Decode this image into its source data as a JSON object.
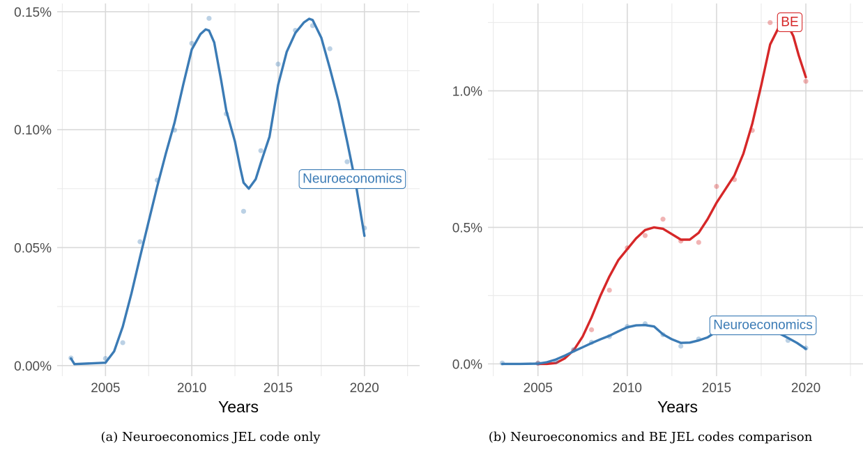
{
  "chart_data": [
    {
      "type": "line",
      "panel": "a",
      "caption": "(a) Neuroeconomics JEL code only",
      "xlabel": "Years",
      "ylabel": "",
      "xlim": [
        2002.2,
        2023.2
      ],
      "ylim": [
        -0.0,
        0.15
      ],
      "x_ticks": [
        2005,
        2010,
        2015,
        2020
      ],
      "x_minor_ticks": [
        2002.5,
        2007.5,
        2012.5,
        2017.5,
        2022.5
      ],
      "y_ticks": [
        0.0,
        0.05,
        0.1,
        0.15
      ],
      "y_tick_labels": [
        "0.00%",
        "0.05%",
        "0.10%",
        "0.15%"
      ],
      "y_minor_ticks": [
        0.025,
        0.075,
        0.125
      ],
      "grid": true,
      "series": [
        {
          "name": "Neuroeconomics",
          "color": "#3b7bb5",
          "label_x": 2019.3,
          "label_y": 0.0795,
          "points_x": [
            2003,
            2005,
            2006,
            2007,
            2008,
            2009,
            2010,
            2011,
            2012,
            2013,
            2014,
            2015,
            2016,
            2017,
            2018,
            2019,
            2020
          ],
          "points_y": [
            0.0032,
            0.003,
            0.0097,
            0.0525,
            0.0786,
            0.0998,
            0.1366,
            0.1472,
            0.1067,
            0.0654,
            0.0911,
            0.1278,
            0.1421,
            0.1441,
            0.1343,
            0.0864,
            0.0583
          ],
          "smooth_x": [
            2003,
            2003.2,
            2005,
            2005.5,
            2006,
            2006.5,
            2007,
            2007.5,
            2008,
            2008.5,
            2009,
            2009.5,
            2010,
            2010.5,
            2010.8,
            2011,
            2011.3,
            2011.7,
            2012,
            2012.5,
            2012.8,
            2013,
            2013.3,
            2013.7,
            2014,
            2014.5,
            2015,
            2015.5,
            2016,
            2016.5,
            2016.8,
            2017,
            2017.5,
            2018,
            2018.5,
            2019,
            2019.5,
            2020
          ],
          "smooth_y": [
            0.003,
            0.0006,
            0.0012,
            0.006,
            0.0165,
            0.0305,
            0.046,
            0.061,
            0.076,
            0.09,
            0.103,
            0.119,
            0.134,
            0.1405,
            0.1425,
            0.142,
            0.137,
            0.121,
            0.108,
            0.095,
            0.084,
            0.0775,
            0.075,
            0.079,
            0.086,
            0.097,
            0.119,
            0.133,
            0.141,
            0.1455,
            0.147,
            0.1465,
            0.139,
            0.126,
            0.112,
            0.095,
            0.077,
            0.055
          ]
        }
      ]
    },
    {
      "type": "line",
      "panel": "b",
      "caption": "(b) Neuroeconomics and BE JEL codes comparison",
      "xlabel": "Years",
      "ylabel": "",
      "xlim": [
        2002.2,
        2023.2
      ],
      "ylim": [
        0.0,
        1.3
      ],
      "x_ticks": [
        2005,
        2010,
        2015,
        2020
      ],
      "x_minor_ticks": [
        2002.5,
        2007.5,
        2012.5,
        2017.5,
        2022.5
      ],
      "y_ticks": [
        0.0,
        0.5,
        1.0
      ],
      "y_tick_labels": [
        "0.0%",
        "0.5%",
        "1.0%"
      ],
      "y_minor_ticks": [
        0.25,
        0.75,
        1.25
      ],
      "grid": true,
      "series": [
        {
          "name": "BE",
          "color": "#d62728",
          "label_x": 2019.1,
          "label_y": 1.255,
          "points_x": [
            2005,
            2007,
            2008,
            2009,
            2010,
            2011,
            2012,
            2013,
            2014,
            2015,
            2016,
            2017,
            2018,
            2019,
            2020
          ],
          "points_y": [
            0.002,
            0.05,
            0.125,
            0.27,
            0.425,
            0.47,
            0.53,
            0.45,
            0.445,
            0.65,
            0.675,
            0.855,
            1.25,
            1.27,
            1.035
          ],
          "smooth_x": [
            2005,
            2005.5,
            2006,
            2006.5,
            2007,
            2007.5,
            2008,
            2008.5,
            2009,
            2009.5,
            2010,
            2010.5,
            2011,
            2011.5,
            2012,
            2012.5,
            2013,
            2013.5,
            2014,
            2014.5,
            2015,
            2015.5,
            2016,
            2016.5,
            2017,
            2017.5,
            2018,
            2018.5,
            2018.8,
            2019,
            2019.3,
            2019.6,
            2020
          ],
          "smooth_y": [
            0.0,
            0.0,
            0.003,
            0.02,
            0.05,
            0.1,
            0.17,
            0.25,
            0.32,
            0.38,
            0.42,
            0.46,
            0.49,
            0.5,
            0.495,
            0.475,
            0.455,
            0.455,
            0.48,
            0.53,
            0.59,
            0.64,
            0.69,
            0.77,
            0.88,
            1.02,
            1.17,
            1.235,
            1.245,
            1.24,
            1.2,
            1.13,
            1.05
          ]
        },
        {
          "name": "Neuroeconomics",
          "color": "#3b7bb5",
          "label_x": 2017.6,
          "label_y": 0.145,
          "points_x": [
            2003,
            2005,
            2006,
            2007,
            2008,
            2009,
            2010,
            2011,
            2012,
            2013,
            2014,
            2015,
            2016,
            2017,
            2018,
            2019,
            2020
          ],
          "points_y": [
            0.003,
            0.003,
            0.01,
            0.052,
            0.079,
            0.1,
            0.137,
            0.147,
            0.107,
            0.065,
            0.091,
            0.128,
            0.142,
            0.144,
            0.134,
            0.086,
            0.058
          ],
          "smooth_x": [
            2003,
            2004,
            2005,
            2005.5,
            2006,
            2006.5,
            2007,
            2007.5,
            2008,
            2008.5,
            2009,
            2009.5,
            2010,
            2010.5,
            2011,
            2011.5,
            2012,
            2012.5,
            2013,
            2013.5,
            2014,
            2014.5,
            2015,
            2015.5,
            2016,
            2016.5,
            2017,
            2017.5,
            2018,
            2018.5,
            2019,
            2019.5,
            2020
          ],
          "smooth_y": [
            0.0,
            0.0,
            0.001,
            0.006,
            0.016,
            0.03,
            0.046,
            0.061,
            0.076,
            0.09,
            0.103,
            0.119,
            0.134,
            0.141,
            0.142,
            0.137,
            0.108,
            0.09,
            0.077,
            0.078,
            0.086,
            0.097,
            0.119,
            0.133,
            0.141,
            0.146,
            0.147,
            0.139,
            0.126,
            0.112,
            0.095,
            0.077,
            0.055
          ]
        }
      ]
    }
  ]
}
